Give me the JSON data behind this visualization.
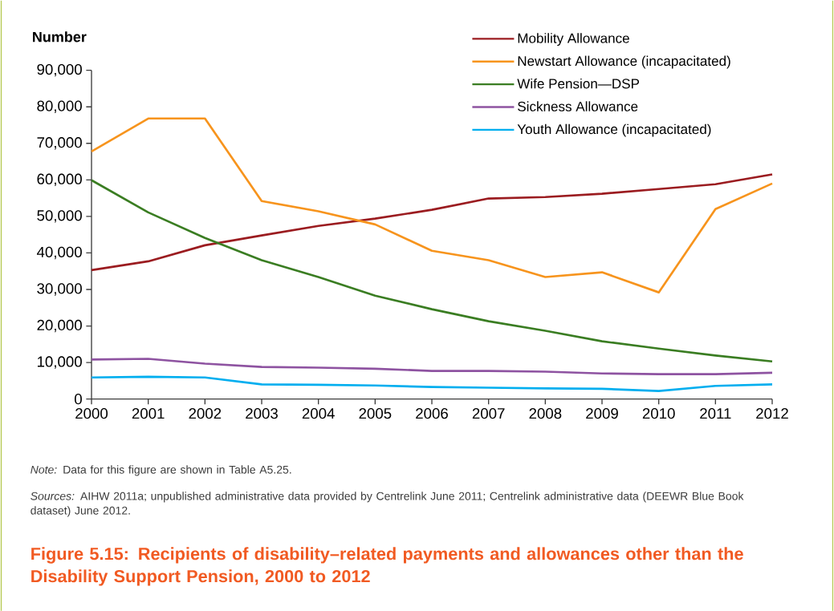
{
  "chart_data": {
    "type": "line",
    "title": "Figure 5.15: Recipients of disability–related payments and allowances other than the Disability Support Pension, 2000 to 2012",
    "ylabel": "Number",
    "annotations": [
      "*Note:* Data for this figure are shown in Table A5.25.",
      "*Sources:* AIHW 2011a; unpublished administrative data provided by Centrelink June 2011; Centrelink administrative data (DEEWR Blue Book dataset) June 2012."
    ],
    "x": [
      2000,
      2001,
      2002,
      2003,
      2004,
      2005,
      2006,
      2007,
      2008,
      2009,
      2010,
      2011,
      2012
    ],
    "xlim": [
      2000,
      2012
    ],
    "xticks": [
      2000,
      2001,
      2002,
      2003,
      2004,
      2005,
      2006,
      2007,
      2008,
      2009,
      2010,
      2011,
      2012
    ],
    "ylim": [
      0,
      90000
    ],
    "yticks": [
      0,
      {
        "value": 10000,
        "label": "10,000"
      },
      {
        "value": 20000,
        "label": "20,000"
      },
      {
        "value": 30000,
        "label": "30,000"
      },
      {
        "value": 40000,
        "label": "40,000"
      },
      {
        "value": 50000,
        "label": "50,000"
      },
      {
        "value": 60000,
        "label": "60,000"
      },
      {
        "value": 70000,
        "label": "70,000"
      },
      {
        "value": 80000,
        "label": "80,000"
      },
      {
        "value": 90000,
        "label": "90,000"
      }
    ],
    "legend": "top right",
    "series": [
      {
        "name": "Mobility Allowance",
        "color": "#9b1c20",
        "values": [
          35300,
          37700,
          42100,
          44800,
          47400,
          49400,
          51800,
          54900,
          55300,
          56200,
          57500,
          58800,
          61500
        ]
      },
      {
        "name": "Newstart Allowance (incapacitated)",
        "color": "#f7941d",
        "values": [
          67800,
          76800,
          76800,
          54200,
          51400,
          47800,
          40600,
          38000,
          33400,
          34700,
          29200,
          52000,
          59000
        ]
      },
      {
        "name": "Wife Pension—DSP",
        "color": "#3a7d22",
        "values": [
          59900,
          51100,
          44100,
          38000,
          33400,
          28300,
          24600,
          21300,
          18700,
          15800,
          13800,
          11900,
          10300
        ]
      },
      {
        "name": "Sickness Allowance",
        "color": "#8e53a1",
        "values": [
          10800,
          11000,
          9700,
          8800,
          8600,
          8300,
          7700,
          7700,
          7500,
          7000,
          6800,
          6800,
          7200
        ]
      },
      {
        "name": "Youth Allowance (incapacitated)",
        "color": "#00aeef",
        "values": [
          5900,
          6100,
          5900,
          4000,
          3900,
          3700,
          3300,
          3100,
          2900,
          2800,
          2200,
          3600,
          4000
        ]
      }
    ]
  }
}
